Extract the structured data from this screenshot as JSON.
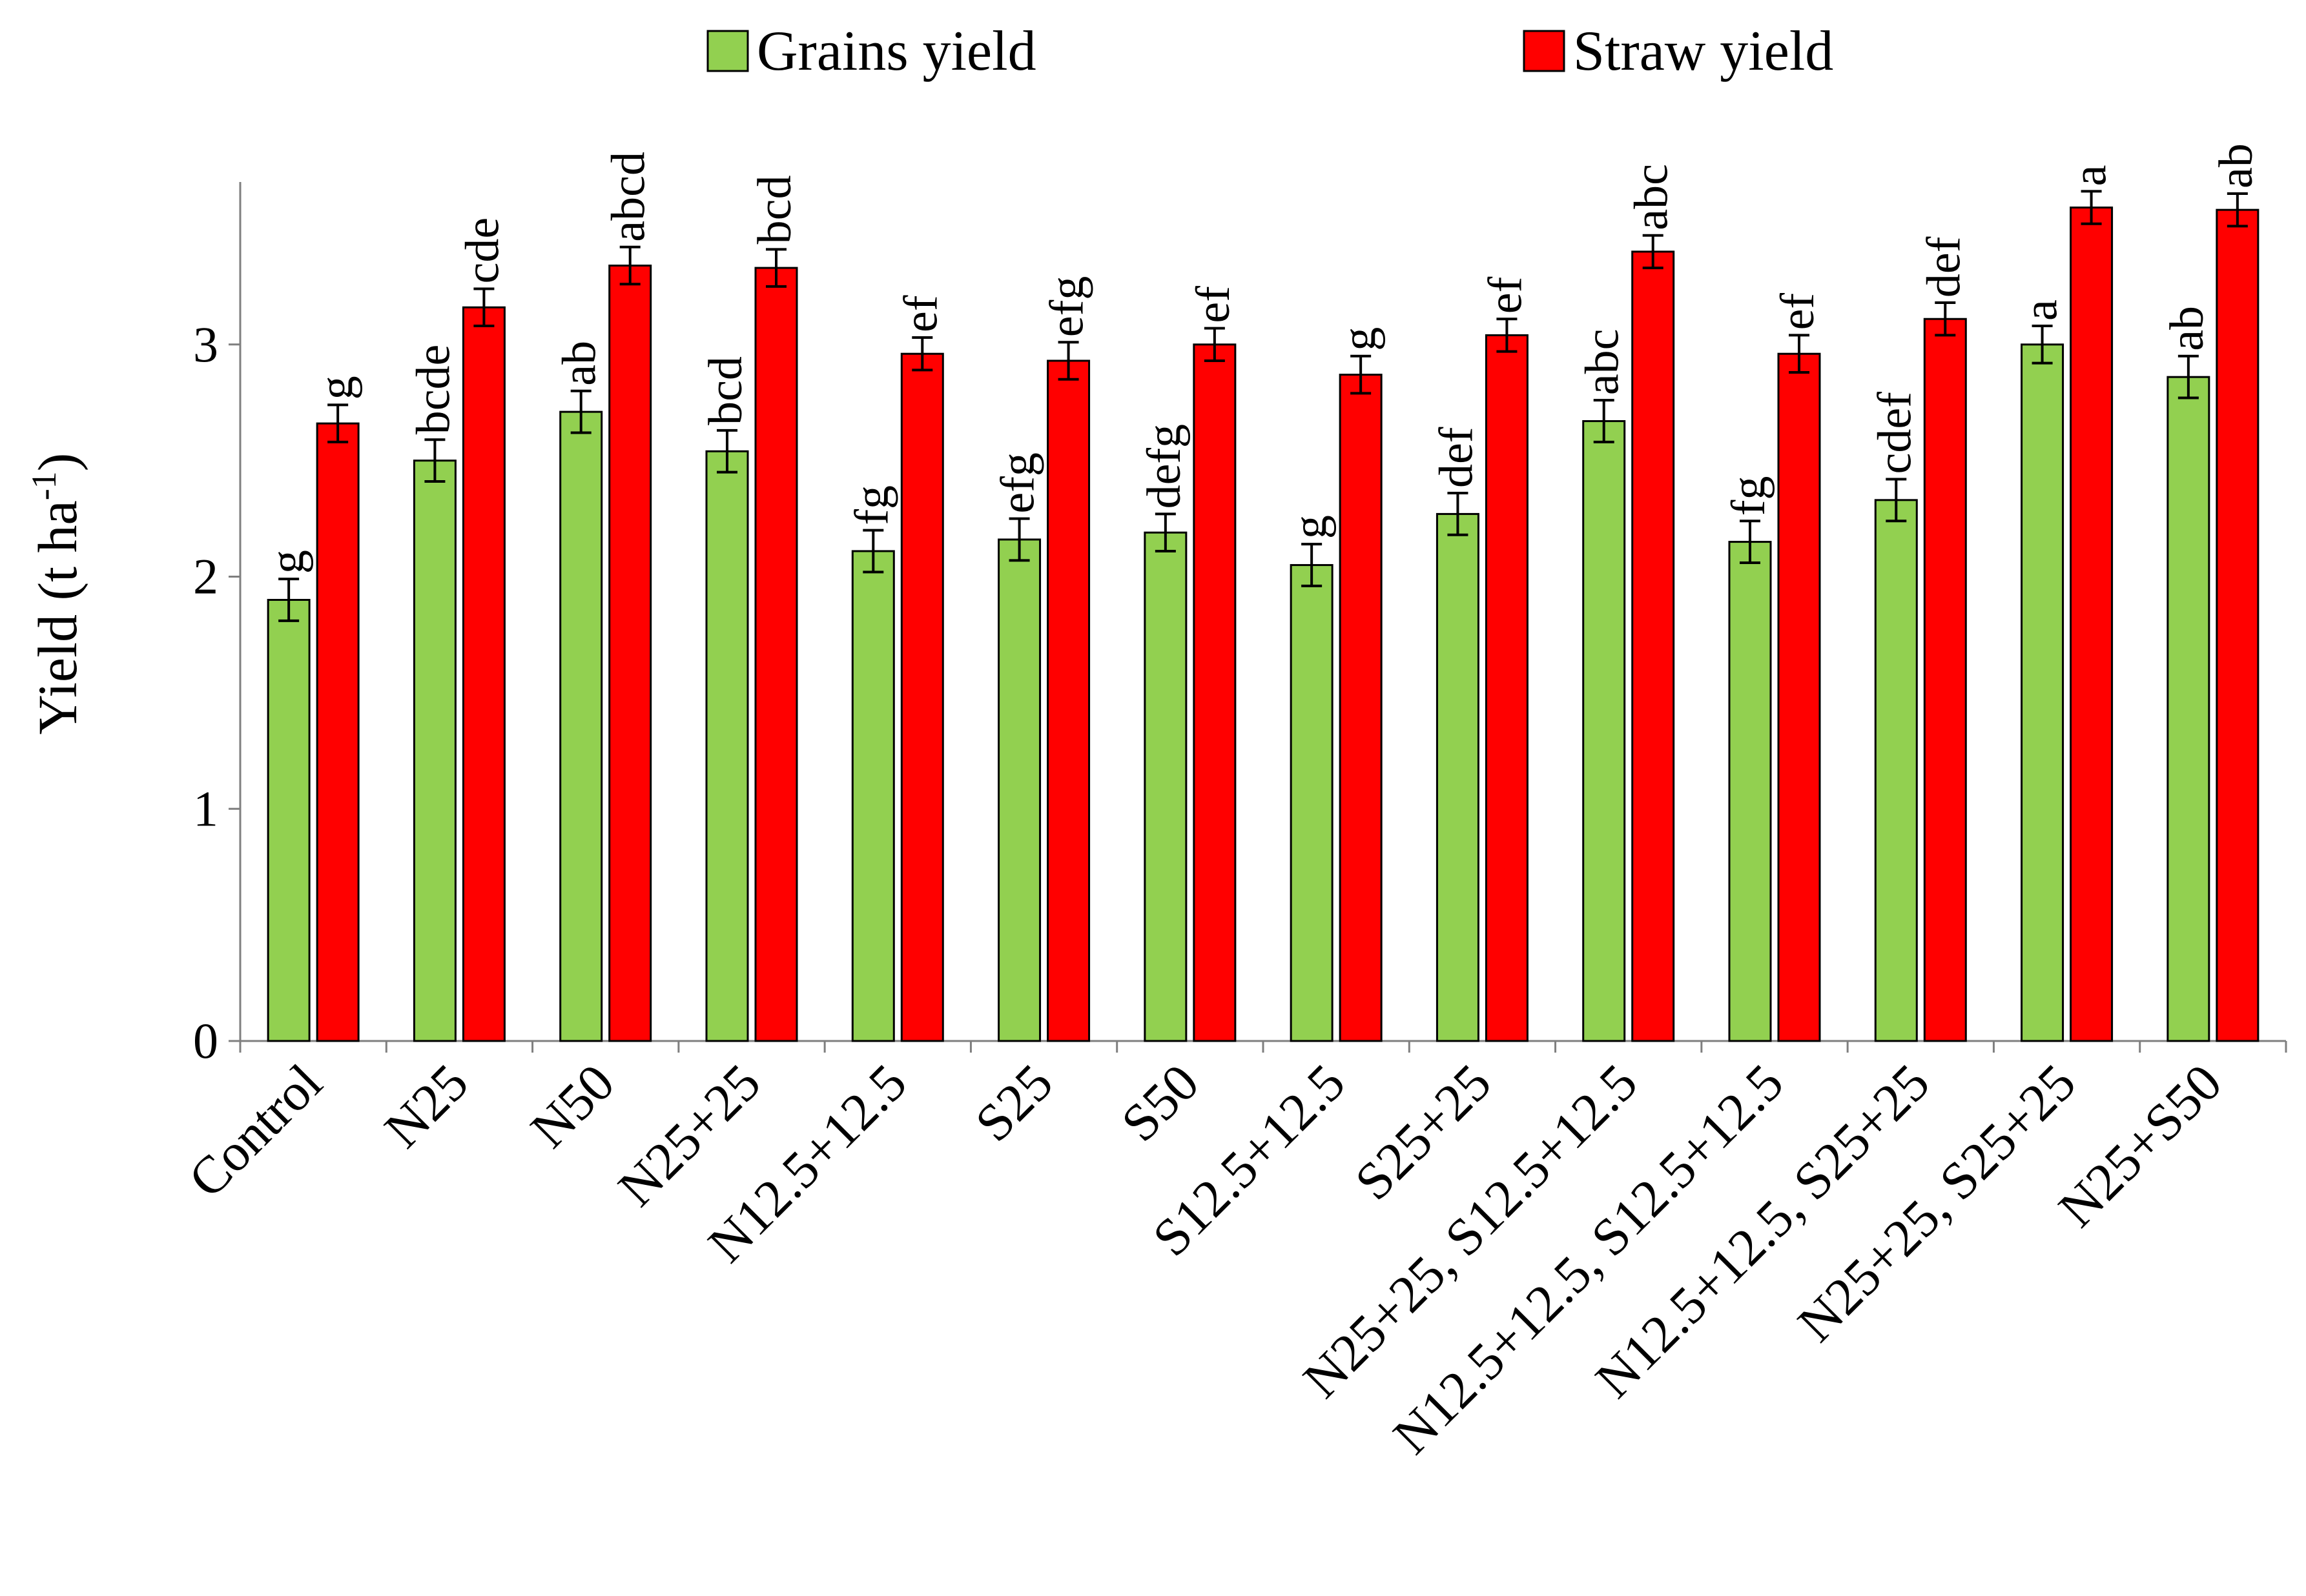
{
  "chart_data": {
    "type": "bar",
    "title": "",
    "xlabel": "",
    "ylabel": "Yield (t ha",
    "ylabel_sup": "-1",
    "ylabel_close": ")",
    "ylim": [
      0,
      3.7
    ],
    "yticks": [
      0,
      1,
      2,
      3
    ],
    "grid": false,
    "legend_position": "top",
    "categories": [
      "Control",
      "N25",
      "N50",
      "N25+25",
      "N12.5+12.5",
      "S25",
      "S50",
      "S12.5+12.5",
      "S25+25",
      "N25+25, S12.5+12.5",
      "N12.5+12.5, S12.5+12.5",
      "N12.5+12.5, S25+25",
      "N25+25, S25+25",
      "N25+S50"
    ],
    "series": [
      {
        "name": "Grains yield",
        "color": "#92d050",
        "values": [
          1.9,
          2.5,
          2.71,
          2.54,
          2.11,
          2.16,
          2.19,
          2.05,
          2.27,
          2.67,
          2.15,
          2.33,
          3.0,
          2.86
        ],
        "errors": [
          0.09,
          0.09,
          0.09,
          0.09,
          0.09,
          0.09,
          0.08,
          0.09,
          0.09,
          0.09,
          0.09,
          0.09,
          0.08,
          0.09
        ],
        "significance": [
          "g",
          "bcde",
          "ab",
          "bcd",
          "fg",
          "efg",
          "defg",
          "g",
          "def",
          "abc",
          "fg",
          "cdef",
          "a",
          "ab"
        ]
      },
      {
        "name": "Straw yield",
        "color": "#ff0000",
        "values": [
          2.66,
          3.16,
          3.34,
          3.33,
          2.96,
          2.93,
          3.0,
          2.87,
          3.04,
          3.4,
          2.96,
          3.11,
          3.59,
          3.58
        ],
        "errors": [
          0.08,
          0.08,
          0.08,
          0.08,
          0.07,
          0.08,
          0.07,
          0.08,
          0.07,
          0.07,
          0.08,
          0.07,
          0.07,
          0.07
        ],
        "significance": [
          "g",
          "cde",
          "abcd",
          "bcd",
          "ef",
          "efg",
          "ef",
          "g",
          "ef",
          "abc",
          "ef",
          "def",
          "a",
          "ab"
        ]
      }
    ]
  }
}
